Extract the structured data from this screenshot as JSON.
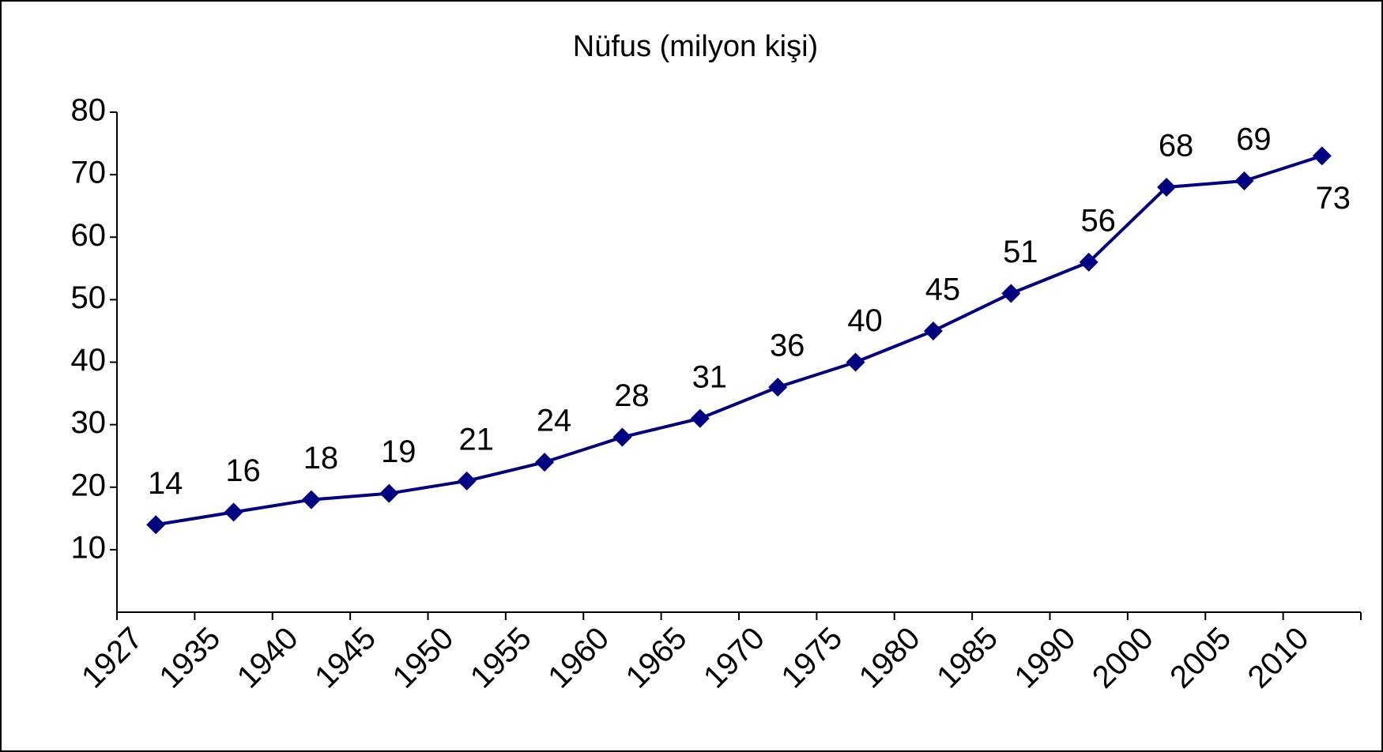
{
  "chart_data": {
    "type": "line",
    "title": "Nüfus (milyon kişi)",
    "categories": [
      "1927",
      "1935",
      "1940",
      "1945",
      "1950",
      "1955",
      "1960",
      "1965",
      "1970",
      "1975",
      "1980",
      "1985",
      "1990",
      "2000",
      "2005",
      "2010"
    ],
    "series": [
      {
        "name": "Nüfus",
        "color": "#000080",
        "values": [
          14,
          16,
          18,
          19,
          21,
          24,
          28,
          31,
          36,
          40,
          45,
          51,
          56,
          68,
          69,
          73
        ]
      }
    ],
    "ylim": [
      0,
      80
    ],
    "yticks": [
      10,
      20,
      30,
      40,
      50,
      60,
      70,
      80
    ],
    "grid": false
  }
}
